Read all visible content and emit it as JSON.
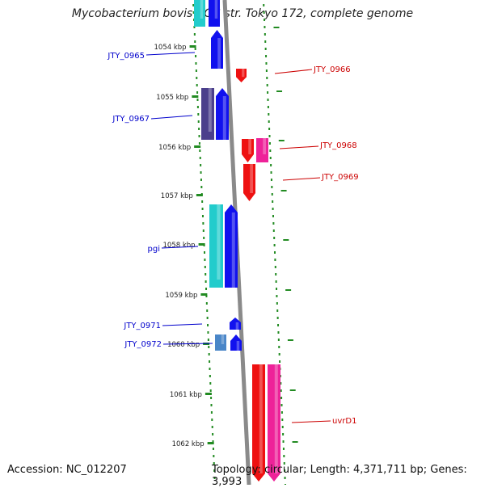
{
  "title": "Mycobacterium bovis BCG str. Tokyo 172, complete genome",
  "footer": {
    "accession": "Accession: NC_012207",
    "topology": "Topology: circular; Length: 4,371,711 bp; Genes: 3,993"
  },
  "scale": {
    "unit": "kbp",
    "ticks": [
      "1054 kbp",
      "1055 kbp",
      "1056 kbp",
      "1057 kbp",
      "1058 kbp",
      "1059 kbp",
      "1060 kbp",
      "1061 kbp",
      "1062 kbp"
    ]
  },
  "colors": {
    "forward_label": "#0000cc",
    "reverse_label": "#cc0000",
    "backbone": "#8a8a8a",
    "tick_green": "#228b22",
    "blue": "#1111ee",
    "navy": "#4b3f8c",
    "cyan": "#22cccc",
    "steel": "#4a86c8",
    "red": "#ee1111",
    "pink": "#ee2299"
  },
  "genes": [
    {
      "label": "JTY_0965",
      "strand": "forward"
    },
    {
      "label": "JTY_0966",
      "strand": "reverse"
    },
    {
      "label": "JTY_0967",
      "strand": "forward"
    },
    {
      "label": "JTY_0968",
      "strand": "reverse"
    },
    {
      "label": "JTY_0969",
      "strand": "reverse"
    },
    {
      "label": "pgi",
      "strand": "forward"
    },
    {
      "label": "JTY_0971",
      "strand": "forward"
    },
    {
      "label": "JTY_0972",
      "strand": "forward"
    },
    {
      "label": "uvrD1",
      "strand": "reverse"
    }
  ]
}
